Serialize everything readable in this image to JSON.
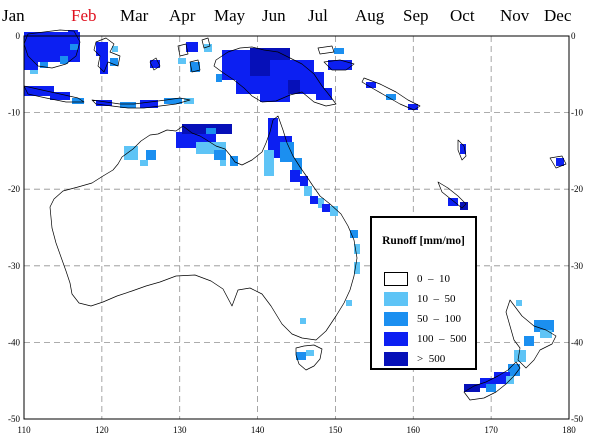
{
  "months": [
    {
      "label": "Jan",
      "selected": false
    },
    {
      "label": "Feb",
      "selected": true
    },
    {
      "label": "Mar",
      "selected": false
    },
    {
      "label": "Apr",
      "selected": false
    },
    {
      "label": "May",
      "selected": false
    },
    {
      "label": "Jun",
      "selected": false
    },
    {
      "label": "Jul",
      "selected": false
    },
    {
      "label": "Aug",
      "selected": false
    },
    {
      "label": "Sep",
      "selected": false
    },
    {
      "label": "Oct",
      "selected": false
    },
    {
      "label": "Nov",
      "selected": false
    },
    {
      "label": "Dec",
      "selected": false
    }
  ],
  "map": {
    "lon_ticks": [
      "110",
      "120",
      "130",
      "140",
      "150",
      "160",
      "170",
      "180"
    ],
    "lat_ticks": [
      "0",
      "-10",
      "-20",
      "-30",
      "-40",
      "-50"
    ],
    "lon_range": [
      110,
      180
    ],
    "lat_range": [
      0,
      -50
    ]
  },
  "legend": {
    "title": "Runoff [mm/mo]",
    "items": [
      {
        "label": "0  –  10",
        "color": "#ffffff"
      },
      {
        "label": "10  –  50",
        "color": "#5ec4f6"
      },
      {
        "label": "50  –  100",
        "color": "#1b8ff0"
      },
      {
        "label": "100  –  500",
        "color": "#0c1ff2"
      },
      {
        "label": ">  500",
        "color": "#0610b8"
      }
    ]
  },
  "colors": {
    "selected_month": "#e0101e",
    "grid": "#909090",
    "coastline": "#000000"
  }
}
